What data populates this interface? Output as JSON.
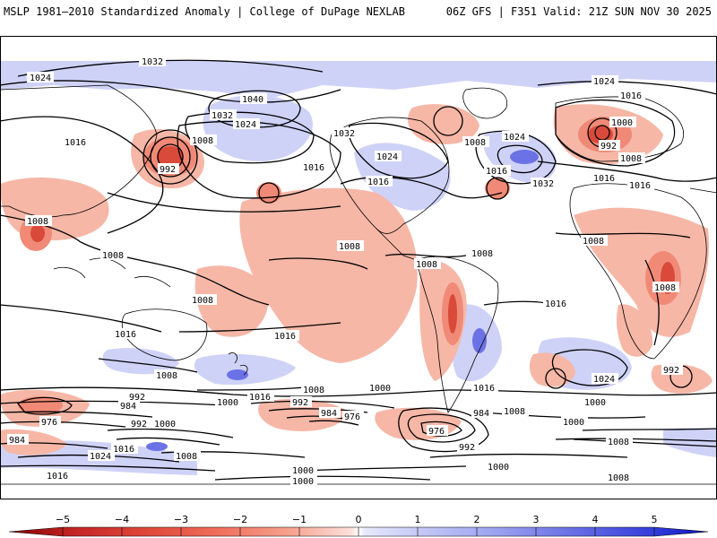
{
  "header": {
    "left_title": "MSLP 1981–2010 Standardized Anomaly | College of DuPage NEXLAB",
    "right_title": "06Z GFS | F351 Valid: 21Z SUN NOV 30 2025"
  },
  "colors": {
    "ocean": "#ffffff",
    "coast": "#000000",
    "pos_light": "#cfd2f7",
    "pos_mid": "#a6acf0",
    "pos_strong": "#6b72e6",
    "neg_light": "#f6b7a7",
    "neg_mid": "#f08a77",
    "neg_strong": "#d94a3a",
    "neg_deep": "#b01e1e"
  },
  "isobars": [
    {
      "id": "1032-north",
      "text": "1032"
    },
    {
      "id": "1024-nw",
      "text": "1024"
    },
    {
      "id": "1024-asia",
      "text": "1024"
    },
    {
      "id": "1016-asia",
      "text": "1016"
    },
    {
      "id": "1016-coast",
      "text": "1016"
    },
    {
      "id": "1040",
      "text": "1040"
    },
    {
      "id": "1032-pac",
      "text": "1032"
    },
    {
      "id": "1024-pac",
      "text": "1024"
    },
    {
      "id": "1016-pac",
      "text": "1016"
    },
    {
      "id": "992-low",
      "text": "992"
    },
    {
      "id": "1008-low",
      "text": "1008"
    },
    {
      "id": "1032-alaska",
      "text": "1032"
    },
    {
      "id": "1024-canada",
      "text": "1024"
    },
    {
      "id": "1016-us",
      "text": "1016"
    },
    {
      "id": "1008-atl",
      "text": "1008"
    },
    {
      "id": "1024-atl",
      "text": "1024"
    },
    {
      "id": "1016-atl",
      "text": "1016"
    },
    {
      "id": "1032-atl",
      "text": "1032"
    },
    {
      "id": "1016-nh",
      "text": "1016"
    },
    {
      "id": "1024-ne",
      "text": "1024"
    },
    {
      "id": "1016-euro",
      "text": "1016"
    },
    {
      "id": "1000-euro",
      "text": "1000"
    },
    {
      "id": "992-euro",
      "text": "992"
    },
    {
      "id": "1008-euro",
      "text": "1008"
    },
    {
      "id": "1016-med",
      "text": "1016"
    },
    {
      "id": "1008-africa",
      "text": "1008"
    },
    {
      "id": "1008-afr-s",
      "text": "1008"
    },
    {
      "id": "1008-india",
      "text": "1008"
    },
    {
      "id": "1008-seasia",
      "text": "1008"
    },
    {
      "id": "1008-indo",
      "text": "1008"
    },
    {
      "id": "1008-pac-c",
      "text": "1008"
    },
    {
      "id": "1008-sam",
      "text": "1008"
    },
    {
      "id": "1008-sam2",
      "text": "1008"
    },
    {
      "id": "1016-sio",
      "text": "1016"
    },
    {
      "id": "1016-spac",
      "text": "1016"
    },
    {
      "id": "1016-sam-s",
      "text": "1016"
    },
    {
      "id": "1016-atl-s",
      "text": "1016"
    },
    {
      "id": "1024-satl",
      "text": "1024"
    },
    {
      "id": "1008-aus",
      "text": "1008"
    },
    {
      "id": "1016-spac2",
      "text": "1016"
    },
    {
      "id": "1008-so1",
      "text": "1008"
    },
    {
      "id": "1000-so1",
      "text": "1000"
    },
    {
      "id": "992-so1",
      "text": "992"
    },
    {
      "id": "984-so1",
      "text": "984"
    },
    {
      "id": "976-so1",
      "text": "976"
    },
    {
      "id": "1000-so2",
      "text": "1000"
    },
    {
      "id": "992-so2",
      "text": "992"
    },
    {
      "id": "984-so2",
      "text": "984"
    },
    {
      "id": "976-so2",
      "text": "976"
    },
    {
      "id": "992-so3",
      "text": "992"
    },
    {
      "id": "1000-so3",
      "text": "1000"
    },
    {
      "id": "984-so4",
      "text": "984"
    },
    {
      "id": "1016-so",
      "text": "1016"
    },
    {
      "id": "1024-so",
      "text": "1024"
    },
    {
      "id": "1008-so4",
      "text": "1008"
    },
    {
      "id": "1000-so4",
      "text": "1000"
    },
    {
      "id": "1008-satl",
      "text": "1008"
    },
    {
      "id": "1000-satl",
      "text": "1000"
    },
    {
      "id": "1000-sio",
      "text": "1000"
    },
    {
      "id": "1008-sio",
      "text": "1008"
    },
    {
      "id": "992-sio",
      "text": "992"
    },
    {
      "id": "1000-bottom",
      "text": "1000"
    },
    {
      "id": "1000-bottom2",
      "text": "1000"
    },
    {
      "id": "1016-bottom",
      "text": "1016"
    },
    {
      "id": "976-sam",
      "text": "976"
    },
    {
      "id": "984-sam",
      "text": "984"
    },
    {
      "id": "992-sam",
      "text": "992"
    },
    {
      "id": "1008-bottom-r",
      "text": "1008"
    }
  ],
  "colorbar": {
    "min": -5,
    "max": 5,
    "ticks": [
      "−5",
      "−4",
      "−3",
      "−2",
      "−1",
      "0",
      "1",
      "2",
      "3",
      "4",
      "5"
    ]
  }
}
